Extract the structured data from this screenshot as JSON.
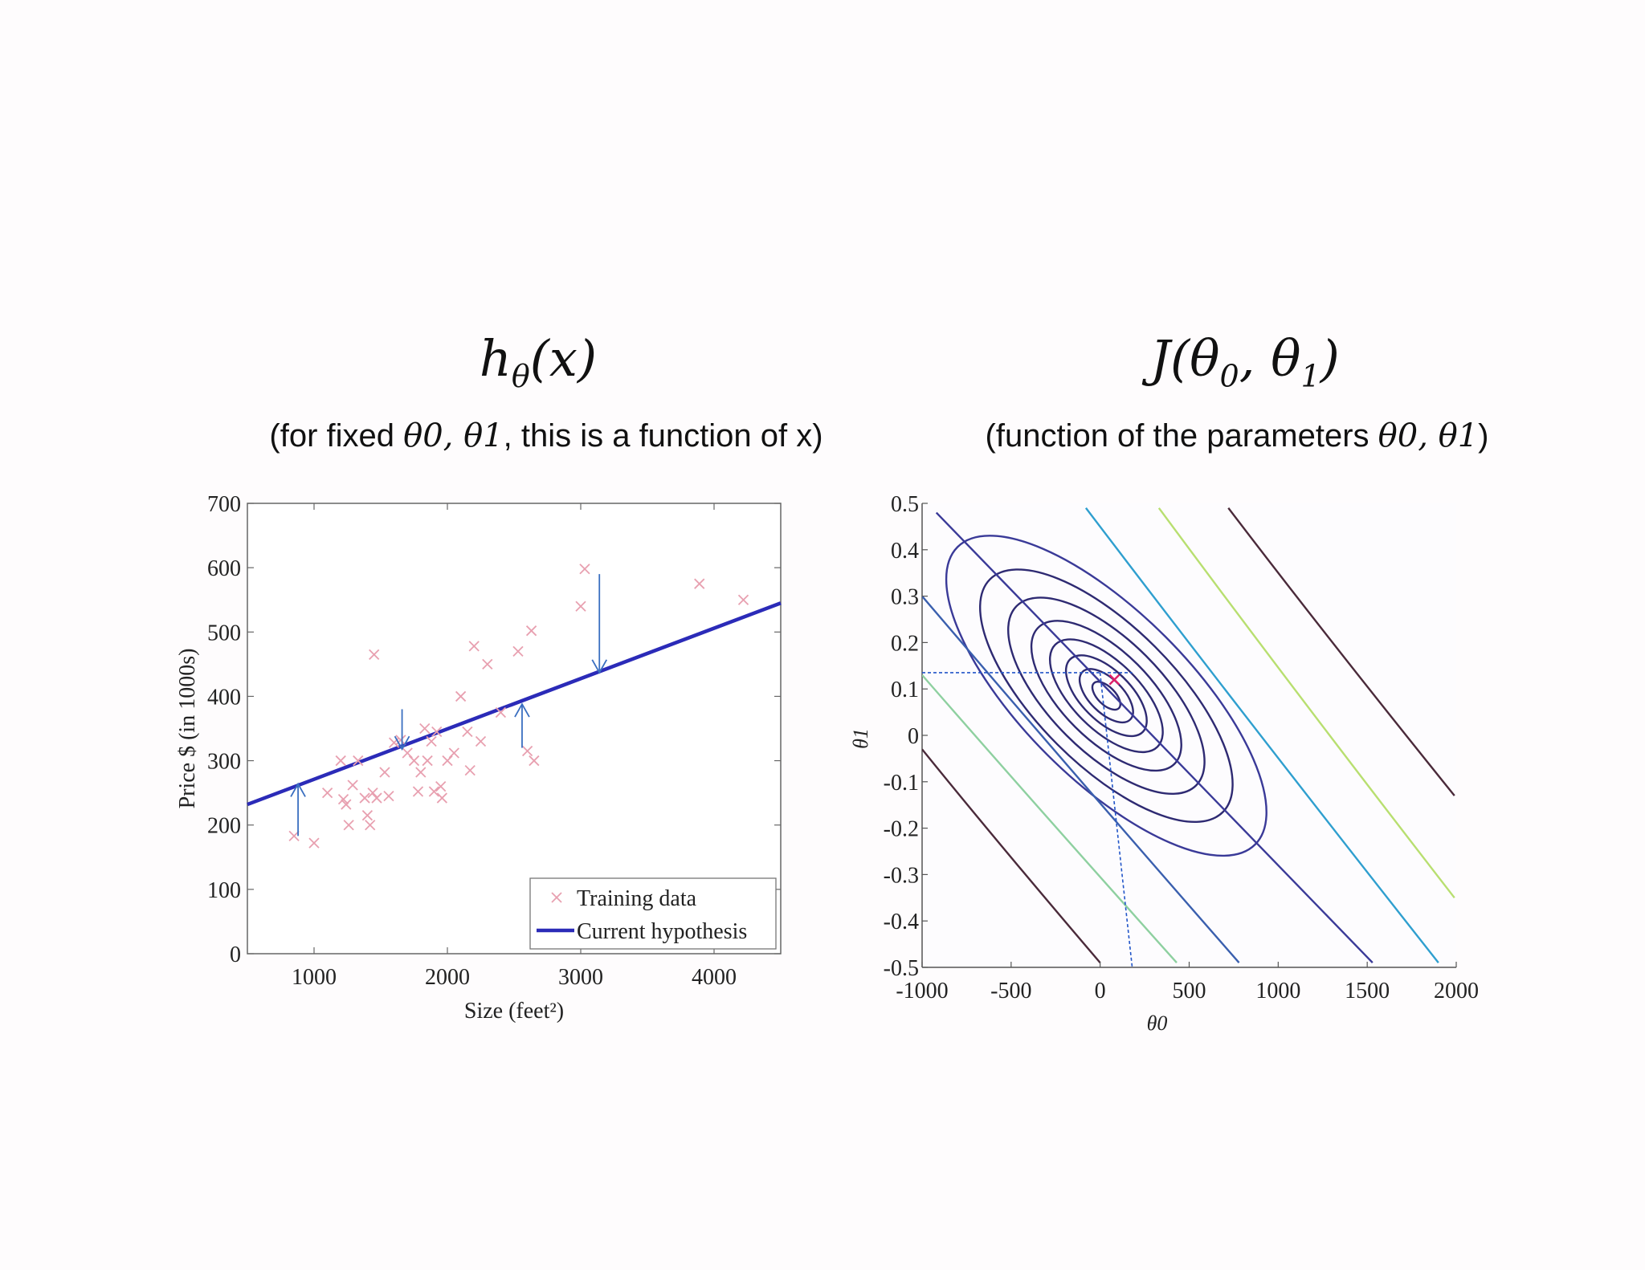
{
  "left_panel": {
    "title_main": "h",
    "title_sub": "θ",
    "title_rest": "(x)",
    "subtitle_pre": "(for fixed ",
    "subtitle_params": "θ0, θ1",
    "subtitle_post": ", this is a function of x)"
  },
  "right_panel": {
    "title_main": "J(θ",
    "title_sub0": "0",
    "title_mid": ", θ",
    "title_sub1": "1",
    "title_end": ")",
    "subtitle_pre": "(function of the parameters ",
    "subtitle_params": "θ0, θ1",
    "subtitle_post": ")"
  },
  "chart_data": [
    {
      "type": "scatter",
      "xlabel": "Size (feet²)",
      "ylabel": "Price $ (in 1000s)",
      "xlim": [
        500,
        4500
      ],
      "ylim": [
        0,
        700
      ],
      "xticks": [
        1000,
        2000,
        3000,
        4000
      ],
      "yticks": [
        0,
        100,
        200,
        300,
        400,
        500,
        600,
        700
      ],
      "legend_position": "bottom-right",
      "series": [
        {
          "name": "Training data",
          "marker": "x",
          "color": "#e8a0b0",
          "points": [
            [
              850,
              183
            ],
            [
              1000,
              172
            ],
            [
              1100,
              250
            ],
            [
              1200,
              300
            ],
            [
              1220,
              240
            ],
            [
              1240,
              232
            ],
            [
              1260,
              200
            ],
            [
              1290,
              262
            ],
            [
              1330,
              300
            ],
            [
              1380,
              242
            ],
            [
              1400,
              215
            ],
            [
              1420,
              200
            ],
            [
              1440,
              250
            ],
            [
              1450,
              465
            ],
            [
              1470,
              242
            ],
            [
              1530,
              282
            ],
            [
              1560,
              245
            ],
            [
              1600,
              328
            ],
            [
              1650,
              332
            ],
            [
              1700,
              312
            ],
            [
              1750,
              300
            ],
            [
              1780,
              252
            ],
            [
              1800,
              282
            ],
            [
              1830,
              350
            ],
            [
              1850,
              300
            ],
            [
              1880,
              330
            ],
            [
              1900,
              252
            ],
            [
              1920,
              345
            ],
            [
              1950,
              260
            ],
            [
              1960,
              242
            ],
            [
              2000,
              300
            ],
            [
              2050,
              312
            ],
            [
              2100,
              400
            ],
            [
              2150,
              345
            ],
            [
              2170,
              285
            ],
            [
              2200,
              478
            ],
            [
              2250,
              330
            ],
            [
              2300,
              450
            ],
            [
              2400,
              375
            ],
            [
              2530,
              470
            ],
            [
              2600,
              315
            ],
            [
              2630,
              502
            ],
            [
              2650,
              300
            ],
            [
              3000,
              540
            ],
            [
              3030,
              598
            ],
            [
              3890,
              575
            ],
            [
              4220,
              550
            ]
          ]
        },
        {
          "name": "Current hypothesis",
          "kind": "line",
          "color": "#2b2bb8",
          "points": [
            [
              500,
              232
            ],
            [
              4500,
              545
            ]
          ]
        }
      ],
      "residual_arrows": [
        {
          "x": 880,
          "from": 183,
          "to": 264
        },
        {
          "x": 1660,
          "from": 380,
          "to": 318
        },
        {
          "x": 2560,
          "from": 320,
          "to": 388
        },
        {
          "x": 3140,
          "from": 590,
          "to": 437
        }
      ]
    },
    {
      "type": "contour",
      "xlabel": "θ0",
      "ylabel": "θ1",
      "xlim": [
        -1000,
        2000
      ],
      "ylim": [
        -0.5,
        0.5
      ],
      "xticks": [
        -1000,
        -500,
        0,
        500,
        1000,
        1500,
        2000
      ],
      "yticks": [
        -0.5,
        -0.4,
        -0.3,
        -0.2,
        -0.1,
        0,
        0.1,
        0.2,
        0.3,
        0.4,
        0.5
      ],
      "minimum_marker": {
        "theta0": 80,
        "theta1": 0.12,
        "color": "#e0206a"
      },
      "level_colors": [
        "#2e2a72",
        "#2e2a72",
        "#2e2a72",
        "#2e2a72",
        "#2e2a72",
        "#2e2a72",
        "#2e2a72",
        "#3a3a98",
        "#3a5fae",
        "#2f9fcf",
        "#8ed0a0",
        "#b8df70",
        "#4a2a3a"
      ],
      "contour_lines": [
        {
          "color": "#4a2a3a",
          "points": [
            [
              720,
              0.49
            ],
            [
              1990,
              -0.13
            ]
          ]
        },
        {
          "color": "#b8df70",
          "points": [
            [
              330,
              0.49
            ],
            [
              1990,
              -0.35
            ]
          ]
        },
        {
          "color": "#2f9fcf",
          "points": [
            [
              -80,
              0.49
            ],
            [
              1900,
              -0.49
            ]
          ]
        },
        {
          "color": "#3a3a98",
          "points": [
            [
              -920,
              0.48
            ],
            [
              1530,
              -0.49
            ]
          ]
        },
        {
          "color": "#3a5fae",
          "points": [
            [
              -1000,
              0.3
            ],
            [
              780,
              -0.49
            ]
          ]
        },
        {
          "color": "#8ed0a0",
          "points": [
            [
              -1000,
              0.13
            ],
            [
              430,
              -0.49
            ]
          ]
        },
        {
          "color": "#4a2a3a",
          "points": [
            [
              -1000,
              -0.03
            ],
            [
              0,
              -0.49
            ]
          ]
        }
      ],
      "guide_lines": {
        "color": "#2255c8",
        "theta0": 180,
        "theta1": 0.135
      }
    }
  ]
}
